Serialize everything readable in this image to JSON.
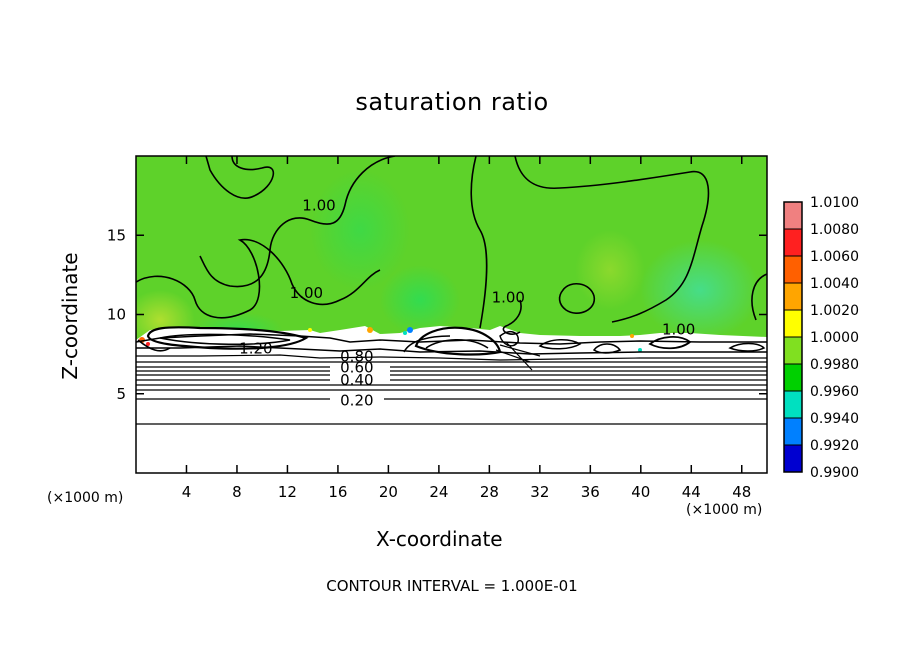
{
  "chart_data": {
    "type": "heatmap",
    "title": "saturation ratio",
    "xlabel": "X-coordinate",
    "ylabel": "Z-coordinate",
    "x_unit_label": "(×1000 m)",
    "y_unit_label": "(×1000 m)",
    "xlim": [
      0,
      50
    ],
    "ylim": [
      0,
      20
    ],
    "x_ticks": [
      4,
      8,
      12,
      16,
      20,
      24,
      28,
      32,
      36,
      40,
      44,
      48
    ],
    "y_ticks": [
      5,
      10,
      15
    ],
    "colorbar": {
      "levels": [
        "1.0100",
        "1.0080",
        "1.0060",
        "1.0040",
        "1.0020",
        "1.0000",
        "0.9980",
        "0.9960",
        "0.9940",
        "0.9920",
        "0.9900"
      ],
      "colors": [
        "#f08080",
        "#ff2020",
        "#ff6000",
        "#ffa500",
        "#ffff00",
        "#80e020",
        "#00d000",
        "#00e0c0",
        "#0080ff",
        "#0000d0",
        "#800080"
      ]
    },
    "contour_labels": [
      {
        "text": "1.00",
        "x": 14.5,
        "z": 16.8
      },
      {
        "text": "1.00",
        "x": 13.5,
        "z": 11.3
      },
      {
        "text": "1.00",
        "x": 29.5,
        "z": 11.0
      },
      {
        "text": "1.00",
        "x": 43.0,
        "z": 9.0
      },
      {
        "text": "1.20",
        "x": 9.5,
        "z": 7.8
      },
      {
        "text": "0.80",
        "x": 17.5,
        "z": 7.3
      },
      {
        "text": "0.60",
        "x": 17.5,
        "z": 6.6
      },
      {
        "text": "0.40",
        "x": 17.5,
        "z": 5.8
      },
      {
        "text": "0.20",
        "x": 17.5,
        "z": 4.5
      }
    ],
    "contour_interval_text": "CONTOUR INTERVAL = 1.000E-01",
    "dominant_value": 1.0
  }
}
